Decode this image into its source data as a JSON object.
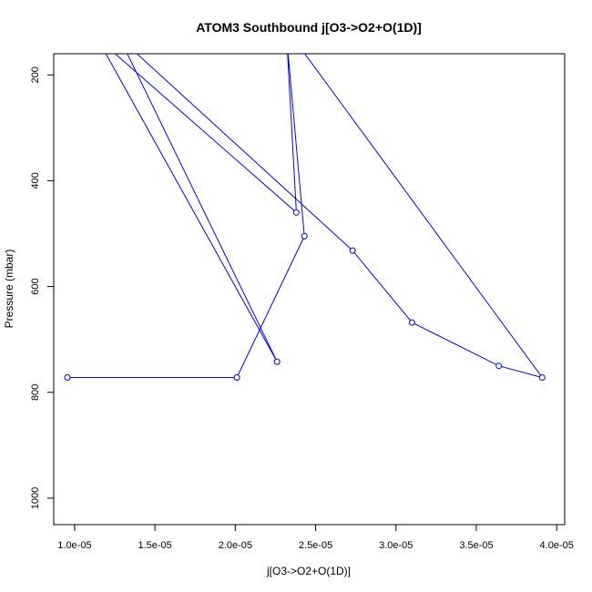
{
  "chart_data": {
    "type": "line",
    "title": "ATOM3 Southbound j[O3->O2+O(1D)]",
    "xlabel": "j[O3->O2+O(1D)]",
    "ylabel": "Pressure (mbar)",
    "xlim": [
      8.7e-06,
      4.05e-05
    ],
    "ylim": [
      1050,
      160
    ],
    "y_inverted": true,
    "grid": false,
    "x_ticks": [
      {
        "value": 1e-05,
        "label": "1.0e-05"
      },
      {
        "value": 1.5e-05,
        "label": "1.5e-05"
      },
      {
        "value": 2e-05,
        "label": "2.0e-05"
      },
      {
        "value": 2.5e-05,
        "label": "2.5e-05"
      },
      {
        "value": 3e-05,
        "label": "3.0e-05"
      },
      {
        "value": 3.5e-05,
        "label": "3.5e-05"
      },
      {
        "value": 4e-05,
        "label": "4.0e-05"
      }
    ],
    "y_ticks": [
      {
        "value": 200,
        "label": "200"
      },
      {
        "value": 400,
        "label": "400"
      },
      {
        "value": 600,
        "label": "600"
      },
      {
        "value": 800,
        "label": "800"
      },
      {
        "value": 1000,
        "label": "1000"
      }
    ],
    "series": [
      {
        "color": "#0000ff",
        "points": [
          {
            "x": 9.55e-06,
            "y": 772
          },
          {
            "x": 2.01e-05,
            "y": 772
          },
          {
            "x": 2.43e-05,
            "y": 505
          },
          {
            "x": 2.32e-05,
            "y": 130
          },
          {
            "x": 2.38e-05,
            "y": 460
          },
          {
            "x": 1.14e-05,
            "y": 130
          },
          {
            "x": 2.26e-05,
            "y": 742
          },
          {
            "x": 1.28e-05,
            "y": 130
          },
          {
            "x": 2.73e-05,
            "y": 532
          },
          {
            "x": 3.1e-05,
            "y": 668
          },
          {
            "x": 3.64e-05,
            "y": 750
          },
          {
            "x": 3.91e-05,
            "y": 772
          },
          {
            "x": 2.36e-05,
            "y": 130
          }
        ],
        "marker_indices": [
          0,
          1,
          2,
          4,
          6,
          8,
          9,
          10,
          11
        ]
      }
    ]
  }
}
